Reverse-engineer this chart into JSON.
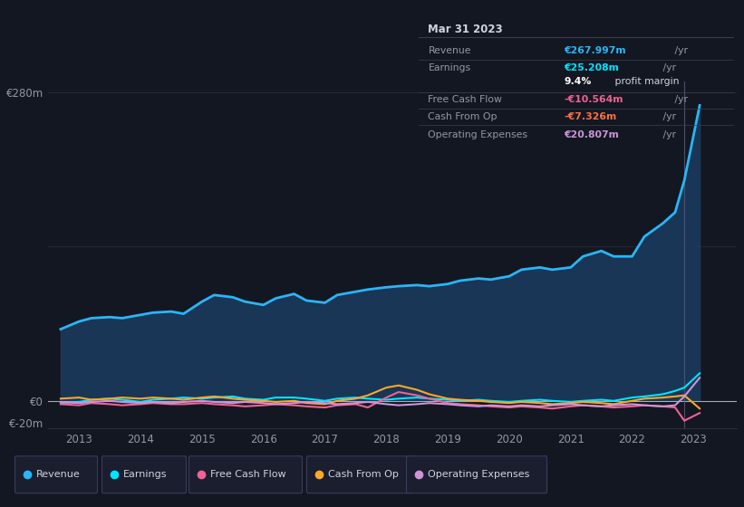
{
  "bg_color": "#131722",
  "plot_bg_color": "#131722",
  "grid_color": "#2a2e39",
  "text_color": "#9598a1",
  "title_text_color": "#d1d4dc",
  "ylim": [
    -25,
    290
  ],
  "xlim": [
    2012.5,
    2023.7
  ],
  "xtick_labels": [
    "2013",
    "2014",
    "2015",
    "2016",
    "2017",
    "2018",
    "2019",
    "2020",
    "2021",
    "2022",
    "2023"
  ],
  "xticks": [
    2013,
    2014,
    2015,
    2016,
    2017,
    2018,
    2019,
    2020,
    2021,
    2022,
    2023
  ],
  "series": {
    "Revenue": {
      "color": "#29b6f6",
      "fill_color": "#1a3a5c",
      "fill": true,
      "lw": 2.0,
      "x": [
        2012.7,
        2013.0,
        2013.2,
        2013.5,
        2013.7,
        2014.0,
        2014.2,
        2014.5,
        2014.7,
        2015.0,
        2015.2,
        2015.5,
        2015.7,
        2016.0,
        2016.2,
        2016.5,
        2016.7,
        2017.0,
        2017.2,
        2017.5,
        2017.7,
        2018.0,
        2018.2,
        2018.5,
        2018.7,
        2019.0,
        2019.2,
        2019.5,
        2019.7,
        2020.0,
        2020.2,
        2020.5,
        2020.7,
        2021.0,
        2021.2,
        2021.5,
        2021.7,
        2022.0,
        2022.2,
        2022.5,
        2022.7,
        2022.85,
        2023.1
      ],
      "y": [
        65,
        72,
        75,
        76,
        75,
        78,
        80,
        81,
        79,
        90,
        96,
        94,
        90,
        87,
        93,
        97,
        91,
        89,
        96,
        99,
        101,
        103,
        104,
        105,
        104,
        106,
        109,
        111,
        110,
        113,
        119,
        121,
        119,
        121,
        131,
        136,
        131,
        131,
        149,
        161,
        171,
        200,
        268
      ]
    },
    "Earnings": {
      "color": "#00e5ff",
      "fill": false,
      "lw": 1.5,
      "x": [
        2012.7,
        2013.0,
        2013.2,
        2013.5,
        2013.7,
        2014.0,
        2014.2,
        2014.5,
        2014.7,
        2015.0,
        2015.2,
        2015.5,
        2015.7,
        2016.0,
        2016.2,
        2016.5,
        2016.7,
        2017.0,
        2017.2,
        2017.5,
        2017.7,
        2018.0,
        2018.2,
        2018.5,
        2018.7,
        2019.0,
        2019.2,
        2019.5,
        2019.7,
        2020.0,
        2020.2,
        2020.5,
        2020.7,
        2021.0,
        2021.2,
        2021.5,
        2021.7,
        2022.0,
        2022.2,
        2022.5,
        2022.7,
        2022.85,
        2023.1
      ],
      "y": [
        -2,
        -1,
        1,
        2,
        1,
        -1,
        1,
        2,
        3,
        2,
        3,
        4,
        2,
        1,
        3,
        3,
        2,
        0,
        2,
        3,
        2,
        1,
        2,
        3,
        2,
        1,
        0,
        1,
        0,
        -1,
        0,
        1,
        0,
        -1,
        0,
        1,
        0,
        3,
        4,
        6,
        9,
        12,
        25
      ]
    },
    "Free Cash Flow": {
      "color": "#f06292",
      "fill": false,
      "lw": 1.5,
      "x": [
        2012.7,
        2013.0,
        2013.2,
        2013.5,
        2013.7,
        2014.0,
        2014.2,
        2014.5,
        2014.7,
        2015.0,
        2015.2,
        2015.5,
        2015.7,
        2016.0,
        2016.2,
        2016.5,
        2016.7,
        2017.0,
        2017.2,
        2017.5,
        2017.7,
        2018.0,
        2018.2,
        2018.5,
        2018.7,
        2019.0,
        2019.2,
        2019.5,
        2019.7,
        2020.0,
        2020.2,
        2020.5,
        2020.7,
        2021.0,
        2021.2,
        2021.5,
        2021.7,
        2022.0,
        2022.2,
        2022.5,
        2022.7,
        2022.85,
        2023.1
      ],
      "y": [
        -3,
        -4,
        -2,
        -3,
        -4,
        -3,
        -2,
        -3,
        -3,
        -2,
        -3,
        -4,
        -5,
        -4,
        -3,
        -4,
        -5,
        -6,
        -4,
        -3,
        -6,
        3,
        8,
        5,
        2,
        -2,
        -3,
        -4,
        -5,
        -6,
        -5,
        -6,
        -7,
        -5,
        -4,
        -5,
        -6,
        -5,
        -4,
        -5,
        -6,
        -18,
        -11
      ]
    },
    "Cash From Op": {
      "color": "#ffa726",
      "fill": false,
      "lw": 1.5,
      "x": [
        2012.7,
        2013.0,
        2013.2,
        2013.5,
        2013.7,
        2014.0,
        2014.2,
        2014.5,
        2014.7,
        2015.0,
        2015.2,
        2015.5,
        2015.7,
        2016.0,
        2016.2,
        2016.5,
        2016.7,
        2017.0,
        2017.2,
        2017.5,
        2017.7,
        2018.0,
        2018.2,
        2018.5,
        2018.7,
        2019.0,
        2019.2,
        2019.5,
        2019.7,
        2020.0,
        2020.2,
        2020.5,
        2020.7,
        2021.0,
        2021.2,
        2021.5,
        2021.7,
        2022.0,
        2022.2,
        2022.5,
        2022.7,
        2022.85,
        2023.1
      ],
      "y": [
        2,
        3,
        1,
        2,
        3,
        2,
        3,
        2,
        1,
        3,
        4,
        2,
        1,
        0,
        -1,
        0,
        -2,
        -3,
        0,
        2,
        5,
        12,
        14,
        10,
        6,
        2,
        1,
        0,
        -1,
        -2,
        -1,
        -2,
        -3,
        -2,
        -1,
        -2,
        -3,
        0,
        2,
        3,
        4,
        5,
        -7
      ]
    },
    "Operating Expenses": {
      "color": "#ce93d8",
      "fill": false,
      "lw": 1.5,
      "x": [
        2012.7,
        2013.0,
        2013.2,
        2013.5,
        2013.7,
        2014.0,
        2014.2,
        2014.5,
        2014.7,
        2015.0,
        2015.2,
        2015.5,
        2015.7,
        2016.0,
        2016.2,
        2016.5,
        2016.7,
        2017.0,
        2017.2,
        2017.5,
        2017.7,
        2018.0,
        2018.2,
        2018.5,
        2018.7,
        2019.0,
        2019.2,
        2019.5,
        2019.7,
        2020.0,
        2020.2,
        2020.5,
        2020.7,
        2021.0,
        2021.2,
        2021.5,
        2021.7,
        2022.0,
        2022.2,
        2022.5,
        2022.7,
        2022.85,
        2023.1
      ],
      "y": [
        -1,
        -2,
        -1,
        0,
        -1,
        -2,
        -1,
        -2,
        -1,
        0,
        -1,
        -2,
        -1,
        -2,
        -3,
        -2,
        -1,
        -2,
        -3,
        -2,
        -1,
        -3,
        -4,
        -3,
        -2,
        -3,
        -4,
        -5,
        -4,
        -5,
        -4,
        -5,
        -4,
        -3,
        -4,
        -5,
        -4,
        -3,
        -4,
        -5,
        -4,
        4,
        21
      ]
    }
  },
  "tooltip": {
    "date": "Mar 31 2023",
    "rows": [
      {
        "label": "Revenue",
        "value": "€267.997m",
        "suffix": " /yr",
        "value_color": "#29b6f6"
      },
      {
        "label": "Earnings",
        "value": "€25.208m",
        "suffix": " /yr",
        "value_color": "#00e5ff"
      },
      {
        "label": "",
        "value": "9.4%",
        "suffix": " profit margin",
        "value_color": "#ffffff",
        "suffix_color": "#d1d4dc"
      },
      {
        "label": "Free Cash Flow",
        "value": "-€10.564m",
        "suffix": " /yr",
        "value_color": "#f06292"
      },
      {
        "label": "Cash From Op",
        "value": "-€7.326m",
        "suffix": " /yr",
        "value_color": "#ff7043"
      },
      {
        "label": "Operating Expenses",
        "value": "€20.807m",
        "suffix": " /yr",
        "value_color": "#ce93d8"
      }
    ]
  },
  "legend": [
    {
      "label": "Revenue",
      "color": "#29b6f6"
    },
    {
      "label": "Earnings",
      "color": "#00e5ff"
    },
    {
      "label": "Free Cash Flow",
      "color": "#f06292"
    },
    {
      "label": "Cash From Op",
      "color": "#ffa726"
    },
    {
      "label": "Operating Expenses",
      "color": "#ce93d8"
    }
  ],
  "vline_x": 2022.85,
  "vline_color": "#555577"
}
